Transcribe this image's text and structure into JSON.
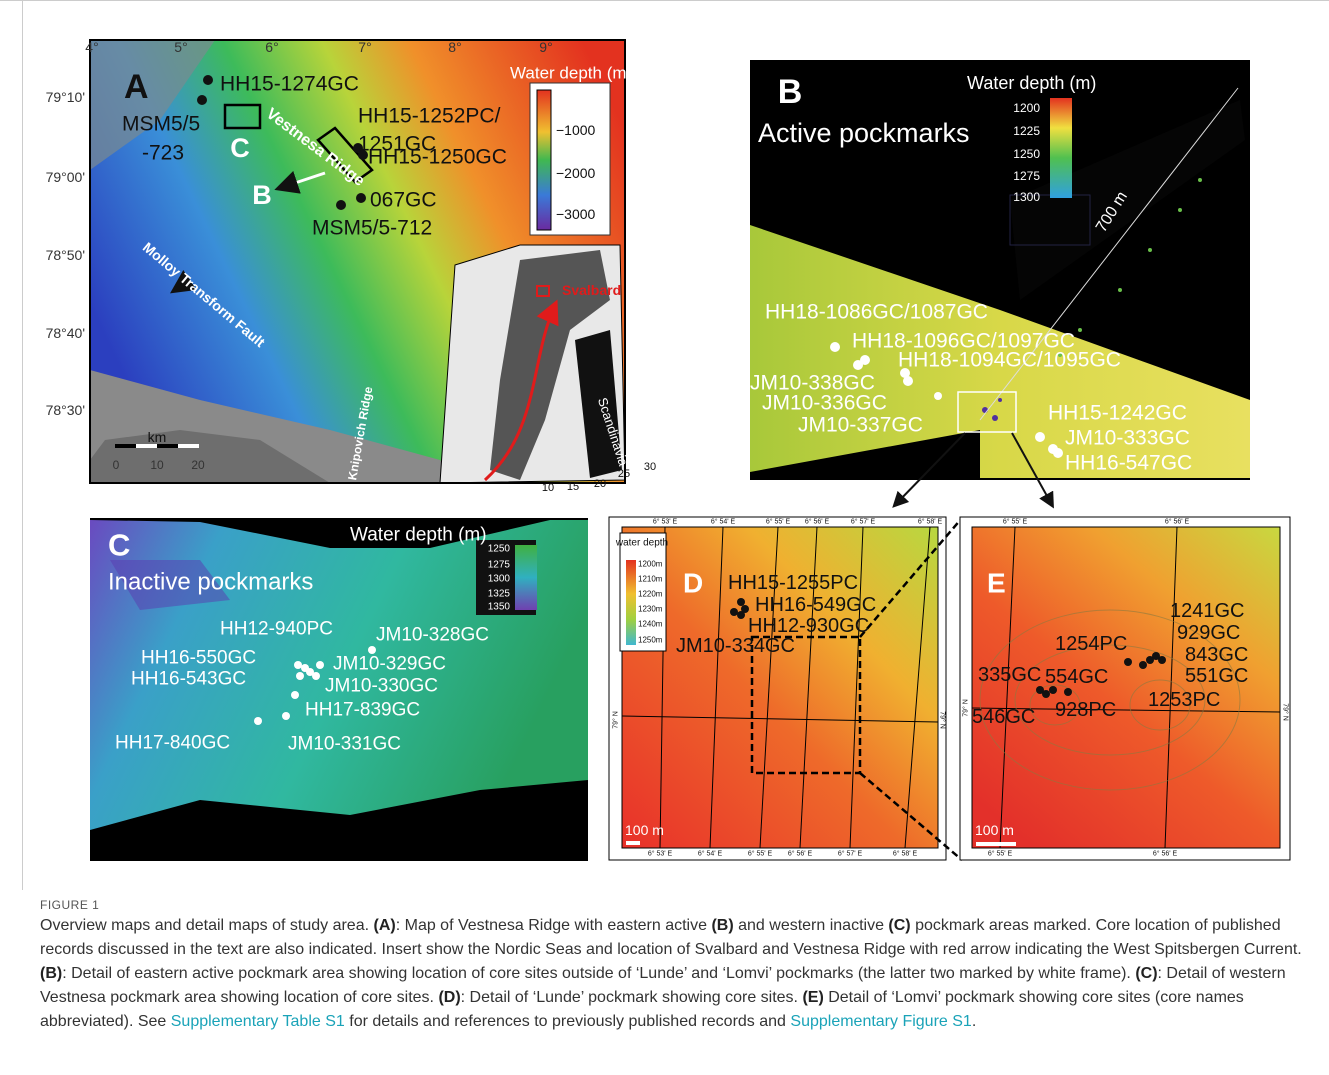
{
  "figure_label": "FIGURE 1",
  "panel_a": {
    "letter": "A",
    "lon_ticks": [
      "4°",
      "5°",
      "6°",
      "7°",
      "8°",
      "9°"
    ],
    "lat_ticks": [
      "79°10'",
      "79°00'",
      "78°50'",
      "78°40'",
      "78°30'"
    ],
    "legend_title": "Water depth (m)",
    "legend_ticks": [
      "−1000",
      "−2000",
      "−3000"
    ],
    "cores": [
      "HH15-1274GC",
      "MSM5/5",
      "-723",
      "HH15-1252PC/",
      "1251GC",
      "HH15-1250GC",
      "067GC",
      "MSM5/5-712"
    ],
    "area_markers": [
      "C",
      "B"
    ],
    "features": [
      "Vestnesa Ridge",
      "Molloy Transform Fault",
      "Knipovich Ridge"
    ],
    "inset_labels": [
      "Svalbard",
      "Scandinavia"
    ],
    "inset_ticks": [
      "10",
      "15",
      "20",
      "25",
      "30"
    ],
    "scale_unit": "km",
    "scale_ticks": [
      "0",
      "10",
      "20"
    ]
  },
  "panel_b": {
    "letter": "B",
    "title": "Active pockmarks",
    "legend_title": "Water depth (m)",
    "legend_ticks": [
      "1200",
      "1225",
      "1250",
      "1275",
      "1300"
    ],
    "distance": "700 m",
    "cores": [
      "HH18-1086GC/1087GC",
      "HH18-1096GC/1097GC",
      "HH18-1094GC/1095GC",
      "JM10-338GC",
      "JM10-336GC",
      "JM10-337GC",
      "HH15-1242GC",
      "JM10-333GC",
      "HH16-547GC"
    ]
  },
  "panel_c": {
    "letter": "C",
    "title": "Inactive pockmarks",
    "legend_title": "Water depth (m)",
    "legend_ticks": [
      "1250",
      "1275",
      "1300",
      "1325",
      "1350"
    ],
    "cores": [
      "HH12-940PC",
      "JM10-328GC",
      "HH16-550GC",
      "JM10-329GC",
      "HH16-543GC",
      "JM10-330GC",
      "HH17-839GC",
      "HH17-840GC",
      "JM10-331GC"
    ]
  },
  "panel_d": {
    "letter": "D",
    "legend_title": "water depth",
    "legend_ticks": [
      "1200m",
      "1210m",
      "1220m",
      "1230m",
      "1240m",
      "1250m"
    ],
    "lon_ticks": [
      "6° 53' E",
      "6° 54' E",
      "6° 55' E",
      "6° 56' E",
      "6° 57' E",
      "6° 58' E"
    ],
    "lat_tick": "79° N",
    "scale": "100 m",
    "cores": [
      "HH15-1255PC",
      "HH16-549GC",
      "HH12-930GC",
      "JM10-334GC"
    ]
  },
  "panel_e": {
    "letter": "E",
    "lon_ticks": [
      "6° 55' E",
      "6° 56' E"
    ],
    "lat_tick": "79° N",
    "scale": "100 m",
    "cores": [
      "1241GC",
      "929GC",
      "1254PC",
      "843GC",
      "335GC",
      "554GC",
      "551GC",
      "1253PC",
      "928PC",
      "546GC"
    ]
  },
  "caption": {
    "parts": [
      {
        "text": "Overview maps and detail maps of study area. "
      },
      {
        "text": "(A)",
        "style": "bold"
      },
      {
        "text": ": Map of Vestnesa Ridge with eastern active "
      },
      {
        "text": "(B)",
        "style": "bold"
      },
      {
        "text": " and western inactive "
      },
      {
        "text": "(C)",
        "style": "bold"
      },
      {
        "text": " pockmark areas marked. Core location of published records discussed in the text are also indicated. Insert show the Nordic Seas and location of Svalbard and Vestnesa Ridge with red arrow indicating the West Spitsbergen Current. "
      },
      {
        "text": "(B)",
        "style": "bold"
      },
      {
        "text": ": Detail of eastern active pockmark area showing location of core sites outside of ‘Lunde’ and ‘Lomvi’ pockmarks (the latter two marked by white frame). "
      },
      {
        "text": "(C)",
        "style": "bold"
      },
      {
        "text": ": Detail of western Vestnesa pockmark area showing location of core sites. "
      },
      {
        "text": "(D)",
        "style": "bold"
      },
      {
        "text": ": Detail of ‘Lunde’ pockmark showing core sites. "
      },
      {
        "text": "(E)",
        "style": "bold"
      },
      {
        "text": " Detail of ‘Lomvi’ pockmark showing core sites (core names abbreviated). See "
      },
      {
        "text": "Supplementary Table S1",
        "style": "link"
      },
      {
        "text": " for details and references to previously published records and "
      },
      {
        "text": "Supplementary Figure S1",
        "style": "link"
      },
      {
        "text": "."
      }
    ]
  }
}
